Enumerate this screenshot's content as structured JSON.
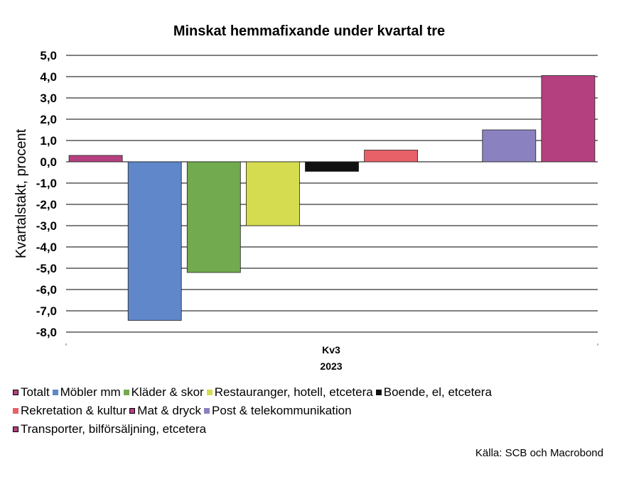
{
  "chart_data": {
    "type": "bar",
    "title": "Minskat hemmafixande under kvartal tre",
    "ylabel": "Kvartalstakt, procent",
    "category_label": "Kv3",
    "category_sublabel": "2023",
    "ylim": [
      -8,
      5
    ],
    "yticks": [
      "5,0",
      "4,0",
      "3,0",
      "2,0",
      "1,0",
      "0,0",
      "-1,0",
      "-2,0",
      "-3,0",
      "-4,0",
      "-5,0",
      "-6,0",
      "-7,0",
      "-8,0"
    ],
    "ytick_values": [
      5,
      4,
      3,
      2,
      1,
      0,
      -1,
      -2,
      -3,
      -4,
      -5,
      -6,
      -7,
      -8
    ],
    "grid": true,
    "legend_position": "bottom",
    "series": [
      {
        "name": "Totalt",
        "value": 0.3,
        "color": "#b5407f"
      },
      {
        "name": "Möbler mm",
        "value": -7.45,
        "color": "#5f87c9"
      },
      {
        "name": "Kläder & skor",
        "value": -5.2,
        "color": "#72aa4f"
      },
      {
        "name": "Restauranger, hotell, etcetera",
        "value": -3.0,
        "color": "#d5dc50"
      },
      {
        "name": "Boende, el, etcetera",
        "value": -0.45,
        "color": "#111111"
      },
      {
        "name": "Rekretation & kultur",
        "value": 0.55,
        "color": "#e86068"
      },
      {
        "name": "Mat & dryck",
        "value": 0.0,
        "color": "#b5407f"
      },
      {
        "name": "Post & telekommunikation",
        "value": 1.5,
        "color": "#8a81c0"
      },
      {
        "name": "Transporter, bilförsäljning, etcetera",
        "value": 4.05,
        "color": "#b5407f"
      }
    ]
  },
  "legend_rows": [
    [
      0,
      1,
      2,
      3,
      4
    ],
    [
      5,
      6,
      7
    ],
    [
      8
    ]
  ],
  "source": "Källa: SCB och Macrobond"
}
